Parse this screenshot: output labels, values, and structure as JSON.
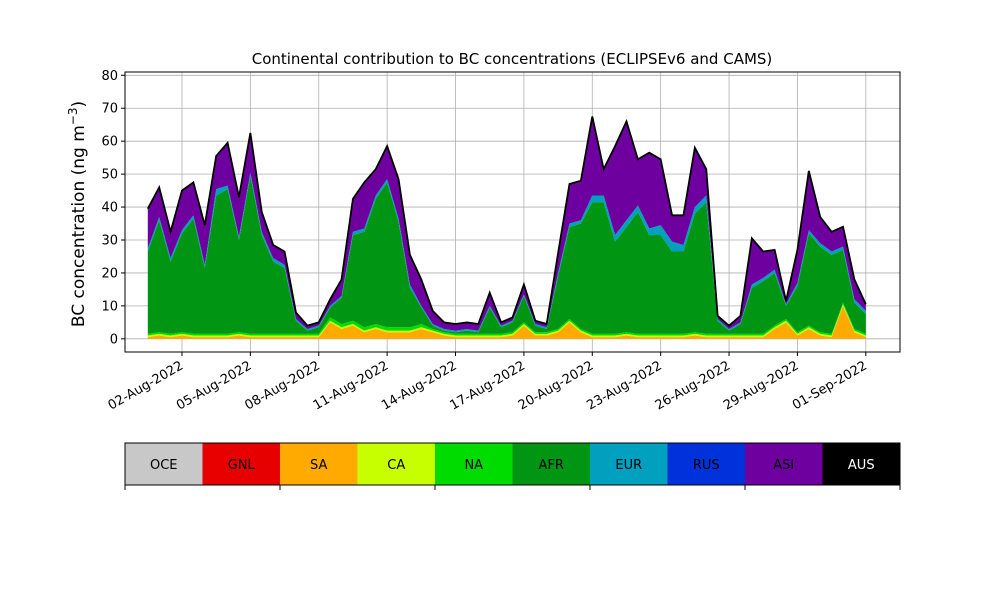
{
  "chart_data": {
    "type": "area",
    "title": "Continental contribution to BC concentrations (ECLIPSEv6 and CAMS)",
    "ylabel": "BC concentration (ng m",
    "ylabel_sup": "−3",
    "ylabel_close": ")",
    "ylim": [
      -4,
      81
    ],
    "yticks": [
      0,
      10,
      20,
      30,
      40,
      50,
      60,
      70,
      80
    ],
    "xlim": [
      "2022-07-30T12:00",
      "2022-09-02T12:00"
    ],
    "x_tick_labels": [
      "02-Aug-2022",
      "05-Aug-2022",
      "08-Aug-2022",
      "11-Aug-2022",
      "14-Aug-2022",
      "17-Aug-2022",
      "20-Aug-2022",
      "23-Aug-2022",
      "26-Aug-2022",
      "29-Aug-2022",
      "01-Sep-2022"
    ],
    "x_tick_dates": [
      "2022-08-02",
      "2022-08-05",
      "2022-08-08",
      "2022-08-11",
      "2022-08-14",
      "2022-08-17",
      "2022-08-20",
      "2022-08-23",
      "2022-08-26",
      "2022-08-29",
      "2022-09-01"
    ],
    "grid": true,
    "legend_placement": "colorbar below chart",
    "colors": {
      "OCE": "#c8c8c8",
      "GNL": "#e60000",
      "SA": "#ffaa00",
      "CA": "#c8ff00",
      "NA": "#00dc00",
      "AFR": "#009614",
      "EUR": "#00a0be",
      "RUS": "#0032dc",
      "ASI": "#6e00a0",
      "AUS": "#000000"
    },
    "legend": [
      "OCE",
      "GNL",
      "SA",
      "CA",
      "NA",
      "AFR",
      "EUR",
      "RUS",
      "ASI",
      "AUS"
    ],
    "x": [
      "2022-07-31T12:00",
      "2022-08-01T00:00",
      "2022-08-01T12:00",
      "2022-08-02T00:00",
      "2022-08-02T12:00",
      "2022-08-03T00:00",
      "2022-08-03T12:00",
      "2022-08-04T00:00",
      "2022-08-04T12:00",
      "2022-08-05T00:00",
      "2022-08-05T12:00",
      "2022-08-06T00:00",
      "2022-08-06T12:00",
      "2022-08-07T00:00",
      "2022-08-07T12:00",
      "2022-08-08T00:00",
      "2022-08-08T12:00",
      "2022-08-09T00:00",
      "2022-08-09T12:00",
      "2022-08-10T00:00",
      "2022-08-10T12:00",
      "2022-08-11T00:00",
      "2022-08-11T12:00",
      "2022-08-12T00:00",
      "2022-08-12T12:00",
      "2022-08-13T00:00",
      "2022-08-13T12:00",
      "2022-08-14T00:00",
      "2022-08-14T12:00",
      "2022-08-15T00:00",
      "2022-08-15T12:00",
      "2022-08-16T00:00",
      "2022-08-16T12:00",
      "2022-08-17T00:00",
      "2022-08-17T12:00",
      "2022-08-18T00:00",
      "2022-08-18T12:00",
      "2022-08-19T00:00",
      "2022-08-19T12:00",
      "2022-08-20T00:00",
      "2022-08-20T12:00",
      "2022-08-21T00:00",
      "2022-08-21T12:00",
      "2022-08-22T00:00",
      "2022-08-22T12:00",
      "2022-08-23T00:00",
      "2022-08-23T12:00",
      "2022-08-24T00:00",
      "2022-08-24T12:00",
      "2022-08-25T00:00",
      "2022-08-25T12:00",
      "2022-08-26T00:00",
      "2022-08-26T12:00",
      "2022-08-27T00:00",
      "2022-08-27T12:00",
      "2022-08-28T00:00",
      "2022-08-28T12:00",
      "2022-08-29T00:00",
      "2022-08-29T12:00",
      "2022-08-30T00:00",
      "2022-08-30T12:00",
      "2022-08-31T00:00",
      "2022-08-31T12:00",
      "2022-09-01T00:00"
    ],
    "series": [
      {
        "name": "SA",
        "values": [
          0.5,
          1,
          0.5,
          1,
          0.5,
          0.5,
          0.5,
          0.5,
          1,
          0.5,
          0.5,
          0.5,
          0.5,
          0.5,
          0.5,
          0.5,
          5,
          3,
          4,
          2,
          3,
          2,
          2,
          2,
          3,
          2,
          1,
          0.5,
          0.5,
          0.5,
          0.5,
          0.5,
          1,
          4,
          1,
          1,
          2,
          5,
          2,
          0.5,
          0.5,
          0.5,
          1,
          0.5,
          0.5,
          0.5,
          0.5,
          0.5,
          1,
          0.5,
          0.5,
          0.5,
          0.5,
          0.5,
          0.5,
          3,
          5,
          1,
          3,
          1,
          0.5,
          10,
          2,
          0.5
        ]
      },
      {
        "name": "CA",
        "values": [
          0.5,
          0.5,
          0.5,
          0.5,
          0.5,
          0.5,
          0.5,
          0.5,
          0.5,
          0.5,
          0.5,
          0.5,
          0.5,
          0.5,
          0.5,
          0.5,
          0.5,
          0.5,
          0.5,
          0.5,
          0.5,
          0.5,
          0.5,
          0.5,
          0.5,
          0.5,
          0.5,
          0.5,
          0.5,
          0.5,
          0.5,
          0.5,
          0.5,
          0.5,
          0.5,
          0.5,
          0.5,
          0.5,
          0.5,
          0.5,
          0.5,
          0.5,
          0.5,
          0.5,
          0.5,
          0.5,
          0.5,
          0.5,
          0.5,
          0.5,
          0.5,
          0.5,
          0.5,
          0.5,
          0.5,
          0.5,
          0.5,
          0.5,
          0.5,
          0.5,
          0.5,
          0.5,
          0.5,
          0.5
        ]
      },
      {
        "name": "NA",
        "values": [
          0.5,
          0.5,
          0.5,
          0.5,
          0.5,
          0.5,
          0.5,
          0.5,
          0.5,
          0.5,
          0.5,
          0.5,
          0.5,
          0.5,
          0.5,
          0.5,
          1,
          1,
          1,
          1,
          1,
          1,
          1,
          1,
          1,
          0.5,
          0.5,
          0.5,
          0.5,
          0.5,
          0.5,
          0.5,
          0.5,
          0.5,
          0.5,
          0.5,
          0.5,
          0.5,
          0.5,
          0.5,
          0.5,
          0.5,
          0.5,
          0.5,
          0.5,
          0.5,
          0.5,
          0.5,
          0.5,
          0.5,
          0.5,
          0.5,
          0.5,
          0.5,
          0.5,
          0.5,
          0.5,
          0.5,
          0.5,
          0.5,
          0.5,
          0.5,
          0.5,
          0.5
        ]
      },
      {
        "name": "AFR",
        "values": [
          25,
          34,
          22,
          30,
          35,
          20,
          42,
          44,
          28,
          48,
          30,
          22,
          20,
          4,
          1,
          2,
          3,
          8,
          26,
          29,
          38,
          44,
          32,
          12,
          5,
          1,
          0.5,
          0.5,
          1,
          0.5,
          8,
          2,
          3,
          8,
          2,
          1,
          16,
          28,
          32,
          40,
          40,
          28,
          32,
          37,
          30,
          30,
          25,
          25,
          36,
          40,
          4,
          1,
          3,
          14,
          16,
          16,
          4,
          14,
          28,
          26,
          24,
          16,
          8,
          6
        ]
      },
      {
        "name": "EUR",
        "values": [
          1,
          1,
          1,
          1,
          1,
          1,
          2,
          1,
          1,
          1,
          1,
          1,
          1,
          0.5,
          0.5,
          0.5,
          0.5,
          0.5,
          1,
          1,
          1,
          1,
          1,
          1,
          0.5,
          0.5,
          0.5,
          0.5,
          0.5,
          0.5,
          0.5,
          0.5,
          0.5,
          0.5,
          0.5,
          0.5,
          1,
          1,
          1,
          2,
          2,
          2,
          2,
          2,
          2,
          3,
          3,
          2,
          2,
          2,
          0.5,
          0.5,
          0.5,
          1,
          1,
          1,
          0.5,
          1,
          1,
          1,
          1,
          1,
          1,
          1
        ]
      },
      {
        "name": "ASI",
        "values": [
          12,
          9,
          8,
          12,
          10,
          12,
          10,
          13,
          12,
          12,
          6,
          4,
          4,
          2,
          1,
          1,
          2,
          5,
          10,
          14,
          8,
          10,
          12,
          9,
          8,
          4,
          2,
          2,
          2,
          2,
          4,
          1,
          1,
          3,
          1,
          1,
          6,
          12,
          12,
          24,
          8,
          27,
          30,
          14,
          23,
          20,
          8,
          9,
          18,
          8,
          1,
          1,
          2,
          14,
          8,
          6,
          1,
          10,
          18,
          8,
          6,
          6,
          6,
          2
        ]
      }
    ]
  },
  "colorbar": {
    "labels": [
      "OCE",
      "GNL",
      "SA",
      "CA",
      "NA",
      "AFR",
      "EUR",
      "RUS",
      "ASI",
      "AUS"
    ]
  }
}
